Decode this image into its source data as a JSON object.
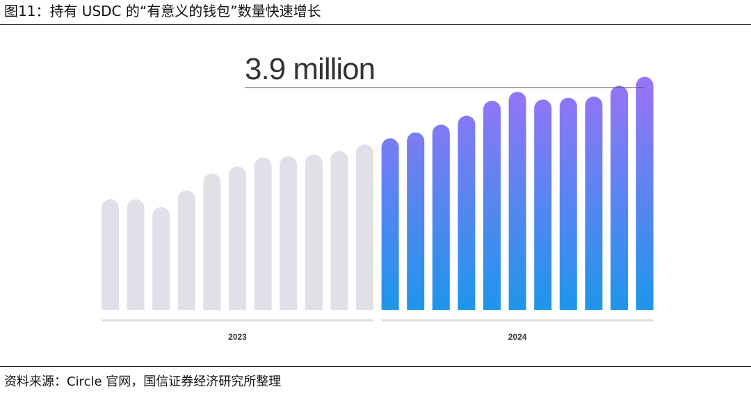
{
  "title": "图11：持有 USDC 的“有意义的钱包”数量快速增长",
  "source": "资料来源：Circle 官网，国信证券经济研究所整理",
  "colors": {
    "bar_2023": "#e0e0e8",
    "bar_2024_top": "#9b72f7",
    "bar_2024_bottom": "#1e96ea",
    "axis": "#dedee6",
    "annotation_line": "#555555"
  },
  "chart_data": {
    "type": "bar",
    "title": "",
    "xlabel": "",
    "ylabel": "",
    "ylim": [
      0,
      4.0
    ],
    "annotation": "3.9 million",
    "groups": [
      {
        "label": "2023",
        "values": [
          1.85,
          1.85,
          1.72,
          2.0,
          2.28,
          2.4,
          2.55,
          2.57,
          2.6,
          2.66,
          2.77
        ]
      },
      {
        "label": "2024",
        "values": [
          2.87,
          2.97,
          3.1,
          3.25,
          3.5,
          3.65,
          3.52,
          3.55,
          3.57,
          3.75,
          3.9
        ]
      }
    ]
  }
}
